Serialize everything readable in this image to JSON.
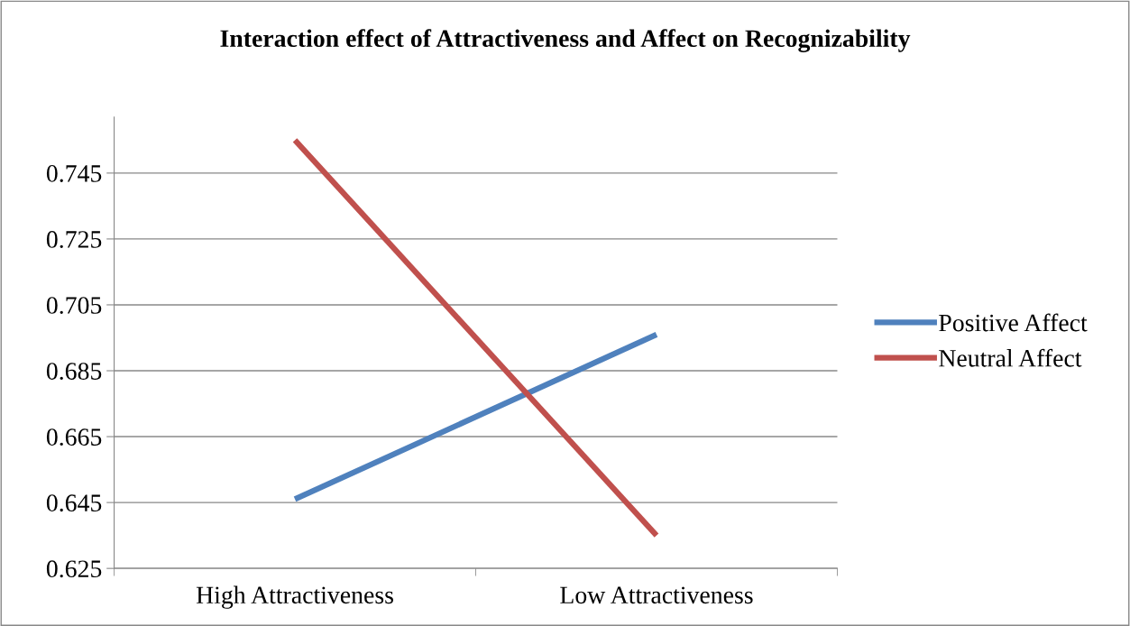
{
  "chart_data": {
    "type": "line",
    "title": "Interaction effect of Attractiveness and Affect on Recognizability",
    "categories": [
      "High Attractiveness",
      "Low Attractiveness"
    ],
    "series": [
      {
        "name": "Positive Affect",
        "color": "#4f81bd",
        "values": [
          0.646,
          0.696
        ]
      },
      {
        "name": "Neutral Affect",
        "color": "#c0504d",
        "values": [
          0.755,
          0.635
        ]
      }
    ],
    "ylim": [
      0.625,
      0.762
    ],
    "yticks": [
      0.625,
      0.645,
      0.665,
      0.685,
      0.705,
      0.725,
      0.745
    ],
    "grid": "y",
    "legend": "right",
    "marker": "none",
    "line_style": "solid"
  }
}
